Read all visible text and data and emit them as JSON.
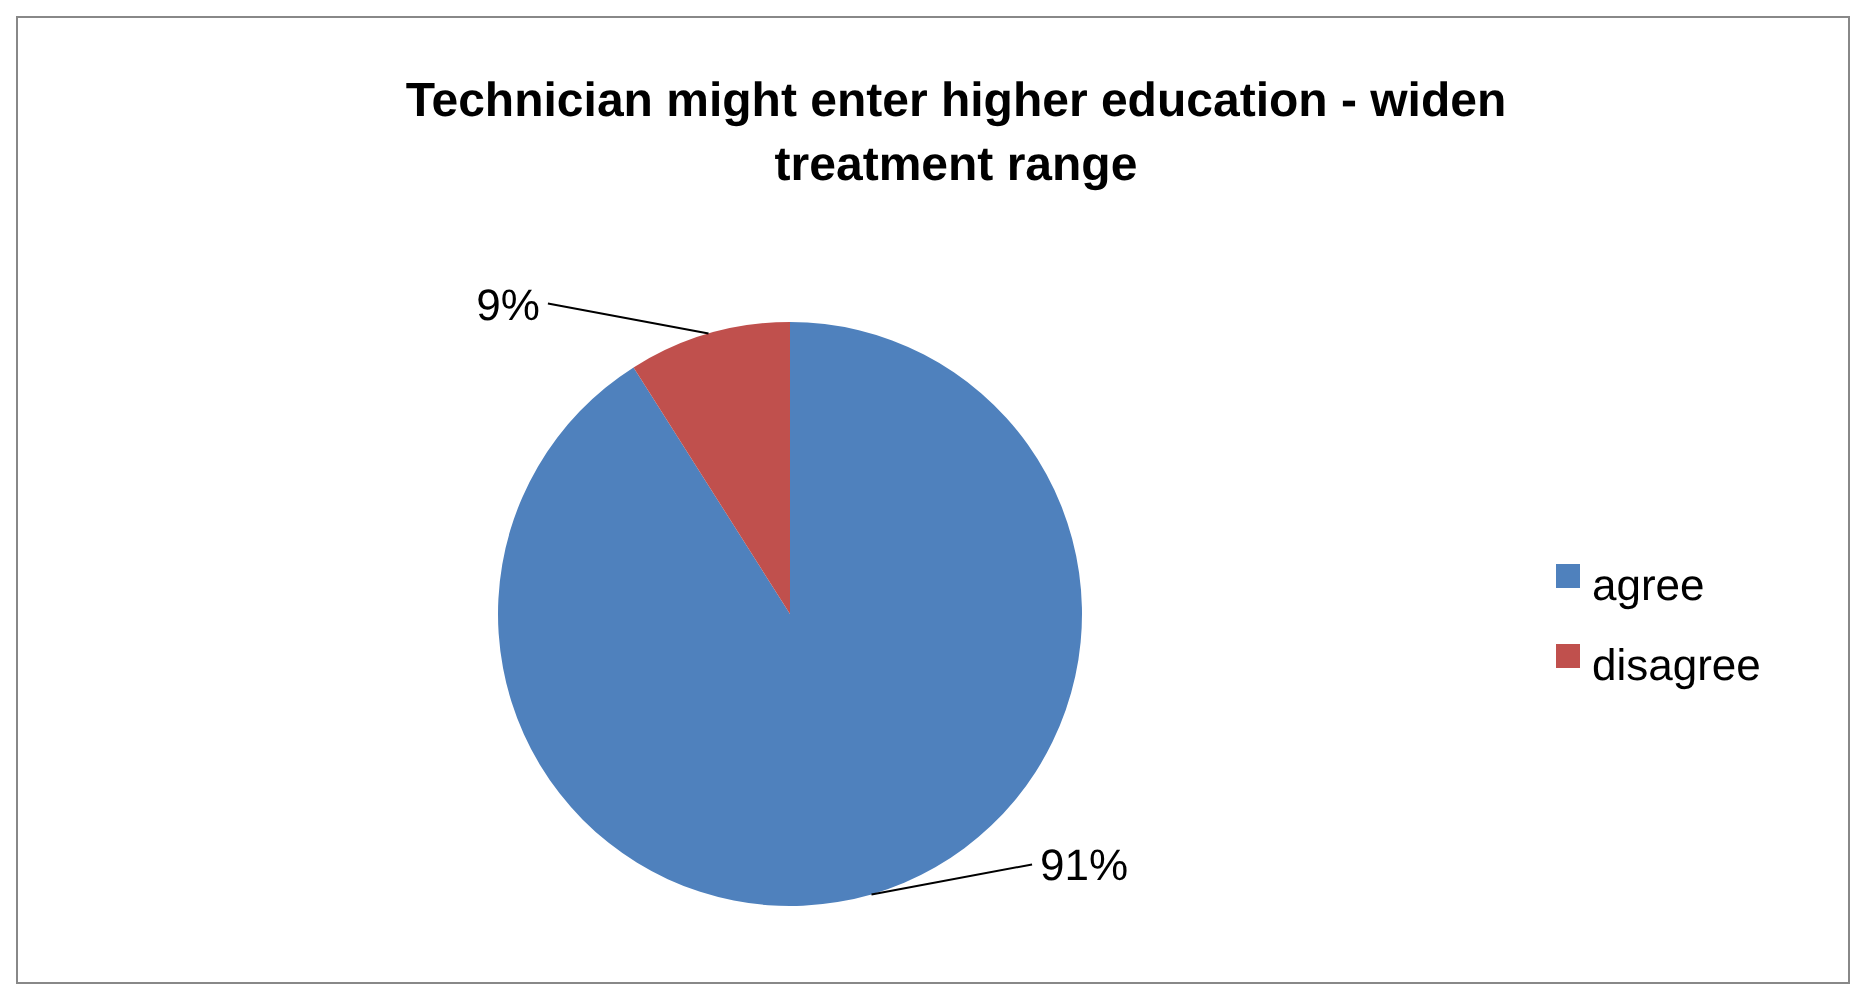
{
  "chart_data": {
    "type": "pie",
    "title": "Technician might enter higher education - widen treatment range",
    "categories": [
      "agree",
      "disagree"
    ],
    "values": [
      91,
      9
    ],
    "colors": [
      "#4f81bd",
      "#c0504d"
    ],
    "value_labels": [
      "91%",
      "9%"
    ],
    "legend": "right"
  }
}
